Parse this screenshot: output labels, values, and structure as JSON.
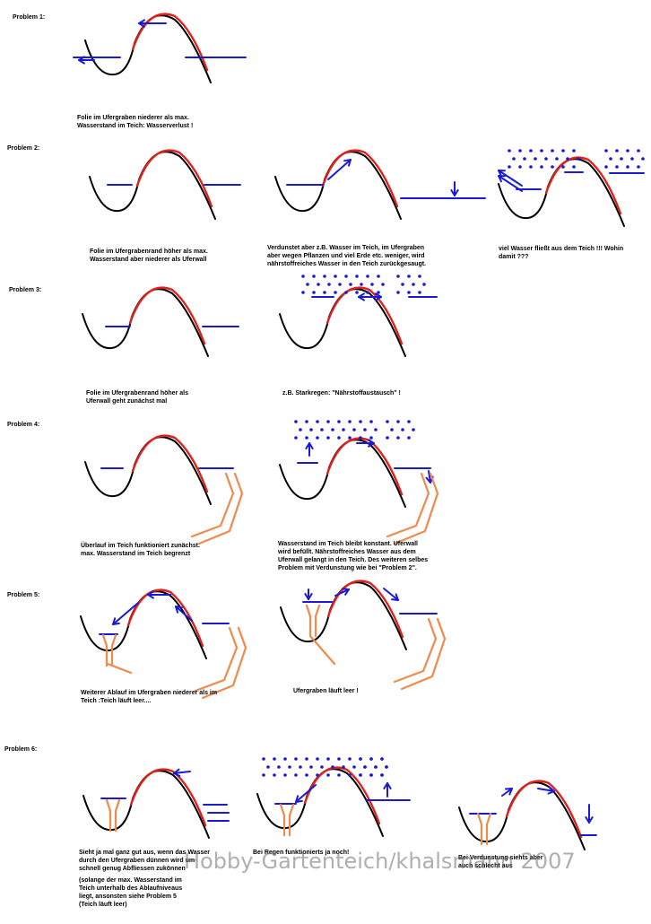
{
  "problems": {
    "p1": {
      "title": "Problem 1:",
      "captions": [
        "Folie im Ufergraben niederer als max.\nWasserstand im Teich: Wasserverlust !"
      ]
    },
    "p2": {
      "title": "Problem 2:",
      "captions": [
        "Folie im Ufergrabenrand höher als max.\nWasserstand aber niederer als Uferwall",
        "Verdunstet aber z.B. Wasser im Teich, im Ufergraben\naber wegen Pflanzen und  viel Erde etc. weniger, wird\nnährstoffreiches Wasser in den Teich zurückgesaugt.",
        "viel Wasser fließt aus dem Teich !!! Wohin\ndamit ???"
      ]
    },
    "p3": {
      "title": "Problem 3:",
      "captions": [
        "Folie im Ufergrabenrand höher als\n      Uferwall  geht zunächst mal",
        "z.B. Starkregen: \"Nährstoffaustausch\" !"
      ]
    },
    "p4": {
      "title": "Problem 4:",
      "captions": [
        "Überlauf im Teich funktioniert zunächst.\nmax. Wasserstand im Teich begrenzt",
        "Wasserstand im Teich bleibt konstant. Uferwall\nwird befüllt. Nährstoffreiches Wasser aus dem\nUferwall gelangt in den Teich. Des weiteren selbes\nProblem mit Verdunstung wie bei \"Problem 2\"."
      ]
    },
    "p5": {
      "title": "Problem 5:",
      "captions": [
        "Weiterer Ablauf im Ufergraben niederer als im\nTeich :Teich läuft leer....",
        "Ufergraben läuft leer !"
      ]
    },
    "p6": {
      "title": "Problem 6:",
      "captions": [
        "Sieht ja mal ganz gut aus, wenn das Wasser\ndurch den Ufergraben dünnen wird um\nschnell genug Abfliessen zukönnen",
        "(solange der max. Wasserstand im\nTeich unterhalb des Ablaufniveaus\nliegt, ansonsten siehe Problem 5\n(Teich läuft leer)",
        "Bei Regen funktionierts ja noch!",
        "Bei Verdunstung siehts aber\nauch schlecht aus"
      ]
    }
  },
  "watermark": "Hobby-Gartenteich/khalsmann 2007",
  "colors": {
    "ground": "#000000",
    "liner": "#e0201b",
    "water": "#1a1ad6",
    "pipe": "#f08a4b"
  }
}
